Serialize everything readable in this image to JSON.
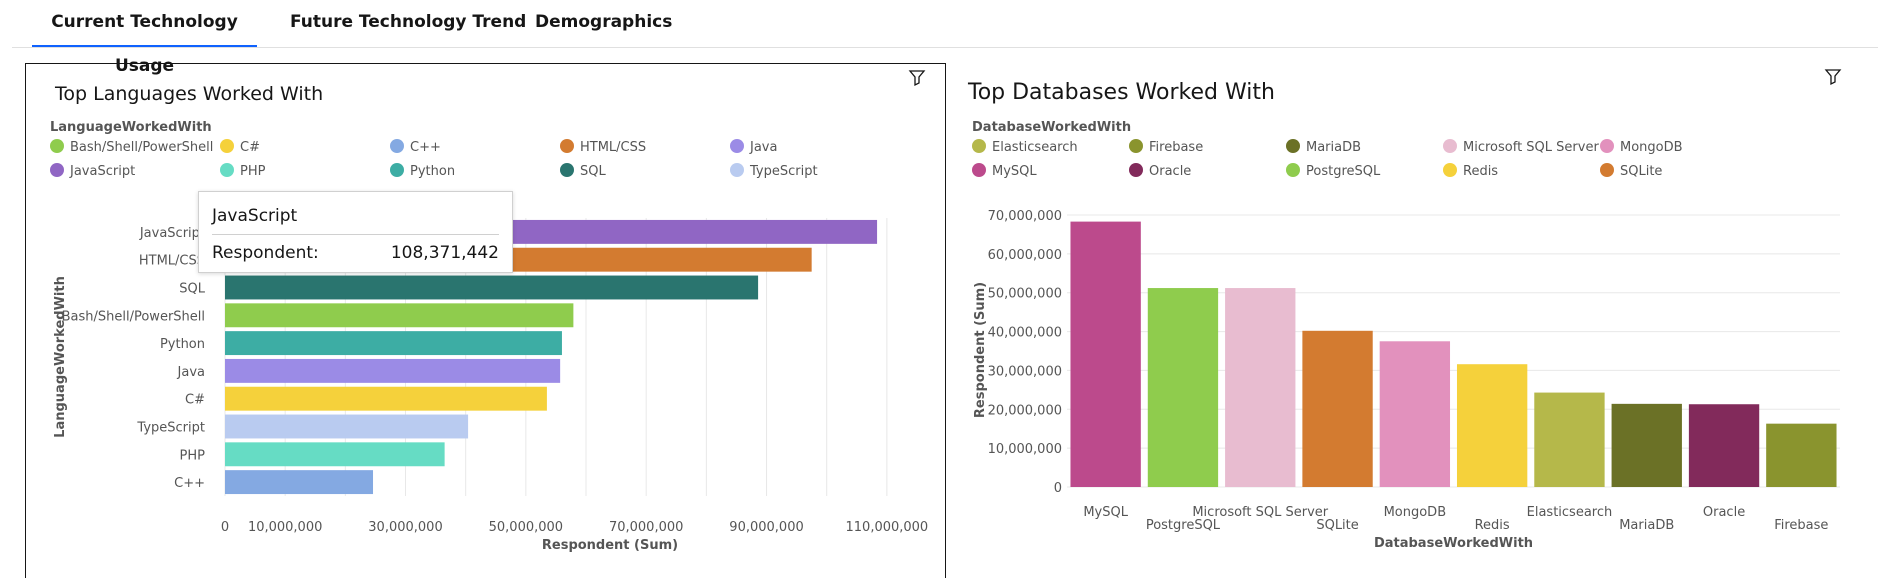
{
  "tabs": [
    {
      "label": "Current Technology Usage",
      "active": true
    },
    {
      "label": "Future Technology Trend",
      "active": false
    },
    {
      "label": "Demographics",
      "active": false
    }
  ],
  "icons": {
    "filter": "filter-icon"
  },
  "tooltip": {
    "title": "JavaScript",
    "label": "Respondent:",
    "value": "108,371,442"
  },
  "chart_data": [
    {
      "type": "bar",
      "orientation": "horizontal",
      "title": "Top Languages Worked With",
      "legend_title": "LanguageWorkedWith",
      "legend": [
        {
          "name": "Bash/Shell/PowerShell",
          "color": "#8fcc4d"
        },
        {
          "name": "C#",
          "color": "#f5d13b"
        },
        {
          "name": "C++",
          "color": "#84a9e2"
        },
        {
          "name": "HTML/CSS",
          "color": "#d37b30"
        },
        {
          "name": "Java",
          "color": "#9b8be6"
        },
        {
          "name": "JavaScript",
          "color": "#9066c4"
        },
        {
          "name": "PHP",
          "color": "#66dcc4"
        },
        {
          "name": "Python",
          "color": "#3dada4"
        },
        {
          "name": "SQL",
          "color": "#2a756f"
        },
        {
          "name": "TypeScript",
          "color": "#b9cbf0"
        }
      ],
      "categories": [
        "JavaScript",
        "HTML/CSS",
        "SQL",
        "Bash/Shell/PowerShell",
        "Python",
        "Java",
        "C#",
        "TypeScript",
        "PHP",
        "C++"
      ],
      "values": [
        108371442,
        97500000,
        88600000,
        57900000,
        56000000,
        55700000,
        53500000,
        40400000,
        36500000,
        24600000
      ],
      "colors": [
        "#9066c4",
        "#d37b30",
        "#2a756f",
        "#8fcc4d",
        "#3dada4",
        "#9b8be6",
        "#f5d13b",
        "#b9cbf0",
        "#66dcc4",
        "#84a9e2"
      ],
      "xlabel": "Respondent (Sum)",
      "ylabel": "LanguageWorkedWith",
      "xlim": [
        0,
        118000000
      ],
      "x_ticks": [
        0,
        10000000,
        30000000,
        50000000,
        70000000,
        90000000,
        110000000
      ],
      "x_tick_labels": [
        "0",
        "10,000,000",
        "30,000,000",
        "50,000,000",
        "70,000,000",
        "90,000,000",
        "110,000,000"
      ],
      "grid": true
    },
    {
      "type": "bar",
      "orientation": "vertical",
      "title": "Top Databases Worked With",
      "legend_title": "DatabaseWorkedWith",
      "legend": [
        {
          "name": "Elasticsearch",
          "color": "#b5b84a"
        },
        {
          "name": "Firebase",
          "color": "#8a942e"
        },
        {
          "name": "MariaDB",
          "color": "#6b7126"
        },
        {
          "name": "Microsoft SQL Server",
          "color": "#e8bcd0"
        },
        {
          "name": "MongoDB",
          "color": "#e291bd"
        },
        {
          "name": "MySQL",
          "color": "#bc4a8c"
        },
        {
          "name": "Oracle",
          "color": "#822a5b"
        },
        {
          "name": "PostgreSQL",
          "color": "#8fcc4d"
        },
        {
          "name": "Redis",
          "color": "#f5d13b"
        },
        {
          "name": "SQLite",
          "color": "#d37b30"
        }
      ],
      "categories": [
        "MySQL",
        "PostgreSQL",
        "Microsoft SQL Server",
        "SQLite",
        "MongoDB",
        "Redis",
        "Elasticsearch",
        "MariaDB",
        "Oracle",
        "Firebase"
      ],
      "values": [
        68300000,
        51200000,
        51200000,
        40200000,
        37500000,
        31600000,
        24300000,
        21400000,
        21300000,
        16300000
      ],
      "colors": [
        "#bc4a8c",
        "#8fcc4d",
        "#e8bcd0",
        "#d37b30",
        "#e291bd",
        "#f5d13b",
        "#b5b84a",
        "#6b7126",
        "#822a5b",
        "#8a942e"
      ],
      "xlabel": "DatabaseWorkedWith",
      "ylabel": "Respondent (Sum)",
      "ylim": [
        0,
        70000000
      ],
      "y_ticks": [
        0,
        10000000,
        20000000,
        30000000,
        40000000,
        50000000,
        60000000,
        70000000
      ],
      "y_tick_labels": [
        "0",
        "10,000,000",
        "20,000,000",
        "30,000,000",
        "40,000,000",
        "50,000,000",
        "60,000,000",
        "70,000,000"
      ],
      "grid": true
    }
  ]
}
